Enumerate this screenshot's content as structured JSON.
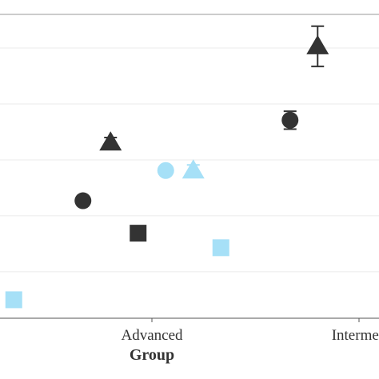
{
  "chart_data": {
    "type": "dodged-points",
    "x_label": "Group",
    "categories": [
      null,
      "Advanced",
      "Intermed"
    ],
    "ylim": [
      0.17,
      5.6
    ],
    "yticks": [
      1,
      2,
      3,
      4,
      5
    ],
    "grid": true,
    "series": [
      {
        "shape": "circle",
        "color": "#333333",
        "values": [
          null,
          2.27,
          3.71
        ],
        "errors": [
          null,
          null,
          0.16
        ]
      },
      {
        "shape": "triangle",
        "color": "#333333",
        "values": [
          null,
          3.31,
          5.03
        ],
        "errors": [
          null,
          0.09,
          0.36
        ]
      },
      {
        "shape": "square",
        "color": "#333333",
        "values": [
          null,
          1.69,
          null
        ],
        "errors": [
          null,
          null,
          null
        ]
      },
      {
        "shape": "circle",
        "color": "#a6e0f7",
        "values": [
          null,
          2.81,
          null
        ],
        "errors": [
          null,
          null,
          null
        ]
      },
      {
        "shape": "triangle",
        "color": "#a6e0f7",
        "values": [
          null,
          2.81,
          null
        ],
        "errors": [
          null,
          0.1,
          null
        ]
      },
      {
        "shape": "square",
        "color": "#a6e0f7",
        "values": [
          0.5,
          1.43,
          null
        ],
        "errors": [
          null,
          null,
          null
        ]
      }
    ]
  }
}
